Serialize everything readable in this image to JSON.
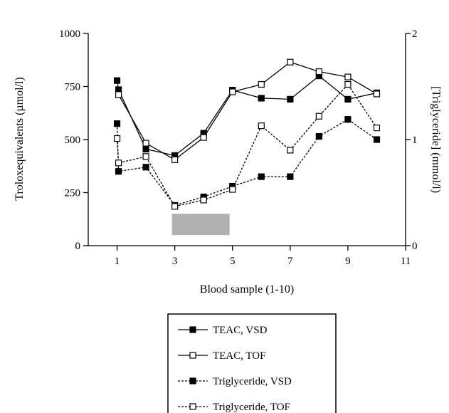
{
  "chart_data": {
    "type": "line",
    "xlabel": "Blood sample (1-10)",
    "ylabel": "Troloxequivalents (µmol/l)",
    "y2label": "[Triglyceride] (mmol/l)",
    "xlim": [
      0,
      11
    ],
    "ylim": [
      0,
      1000
    ],
    "y2lim": [
      0,
      2
    ],
    "xticks": [
      1,
      3,
      5,
      7,
      9,
      11
    ],
    "yticks": [
      0,
      250,
      500,
      750,
      1000
    ],
    "y2ticks": [
      0,
      1,
      2
    ],
    "shaded_region": {
      "x0": 2.9,
      "x1": 4.9,
      "y0": 50,
      "y1": 150
    },
    "legend_position": "bottom",
    "grid": false,
    "series": [
      {
        "name": "TEAC, VSD",
        "axis": "left",
        "line": "solid",
        "marker": "filled-square",
        "x": [
          1,
          1.05,
          2,
          3,
          4,
          5,
          6,
          7,
          8,
          9,
          10
        ],
        "y": [
          778,
          735,
          455,
          425,
          530,
          733,
          695,
          690,
          800,
          690,
          720
        ]
      },
      {
        "name": "TEAC, TOF",
        "axis": "left",
        "line": "solid",
        "marker": "open-square",
        "x": [
          1.05,
          2,
          3,
          4,
          5,
          6,
          7,
          8,
          9,
          10
        ],
        "y": [
          712,
          483,
          405,
          510,
          725,
          760,
          865,
          820,
          795,
          715
        ]
      },
      {
        "name": "Triglyceride, VSD",
        "axis": "right",
        "line": "dashed",
        "marker": "filled-square",
        "x": [
          1,
          1.05,
          2,
          3,
          4,
          5,
          6,
          7,
          8,
          9,
          10
        ],
        "y": [
          1.15,
          0.7,
          0.74,
          0.38,
          0.46,
          0.56,
          0.65,
          0.65,
          1.03,
          1.19,
          1.0
        ]
      },
      {
        "name": "Triglyceride, TOF",
        "axis": "right",
        "line": "dashed",
        "marker": "open-square",
        "x": [
          1,
          1.05,
          2,
          3,
          4,
          5,
          6,
          7,
          8,
          9,
          10
        ],
        "y": [
          1.01,
          0.78,
          0.84,
          0.37,
          0.43,
          0.53,
          1.13,
          0.9,
          1.22,
          1.52,
          1.11
        ]
      }
    ]
  }
}
